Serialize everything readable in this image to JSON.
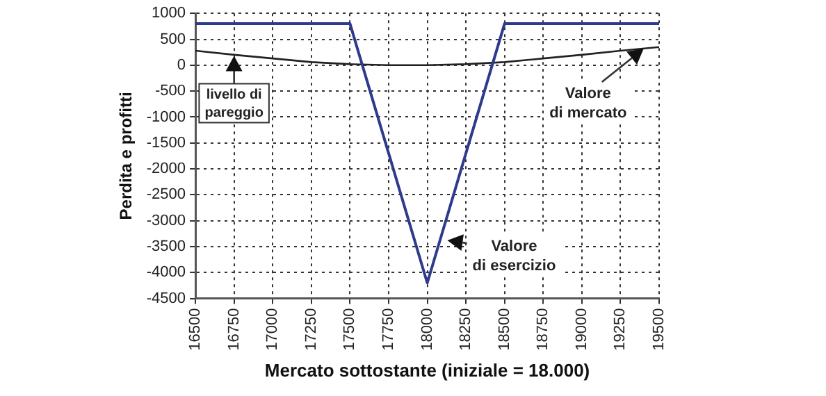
{
  "chart_data": {
    "type": "line",
    "xlabel": "Mercato sottostante (iniziale = 18.000)",
    "ylabel": "Perdita e profitti",
    "x": [
      16500,
      16750,
      17000,
      17250,
      17500,
      17750,
      18000,
      18250,
      18500,
      18750,
      19000,
      19250,
      19500
    ],
    "series": [
      {
        "color": "#2e3a8c",
        "values": [
          800,
          800,
          800,
          800,
          800,
          -1700,
          -4200,
          -1700,
          800,
          800,
          800,
          800,
          800
        ]
      },
      {
        "color": "#222222",
        "values": [
          280,
          200,
          130,
          60,
          20,
          0,
          0,
          20,
          60,
          130,
          200,
          280,
          350
        ]
      }
    ],
    "xlim": [
      16500,
      19500
    ],
    "xticks": [
      16500,
      16750,
      17000,
      17250,
      17500,
      17750,
      18000,
      18250,
      18500,
      18750,
      19000,
      19250,
      19500
    ],
    "ylim": [
      -4500,
      1000
    ],
    "yticks": [
      -4500,
      -4000,
      -3500,
      -3000,
      -2500,
      -2000,
      -1500,
      -1000,
      -500,
      0,
      500,
      1000
    ],
    "annotations": [
      {
        "text": "livello di pareggio",
        "x": 16750,
        "y": 180
      },
      {
        "text": "Valore di mercato",
        "x": 19400,
        "y": 320
      },
      {
        "text": "Valore di esercizio",
        "x": 18130,
        "y": -3380
      }
    ],
    "grid": true,
    "legend": false,
    "marker": "none",
    "line_style": "solid"
  }
}
